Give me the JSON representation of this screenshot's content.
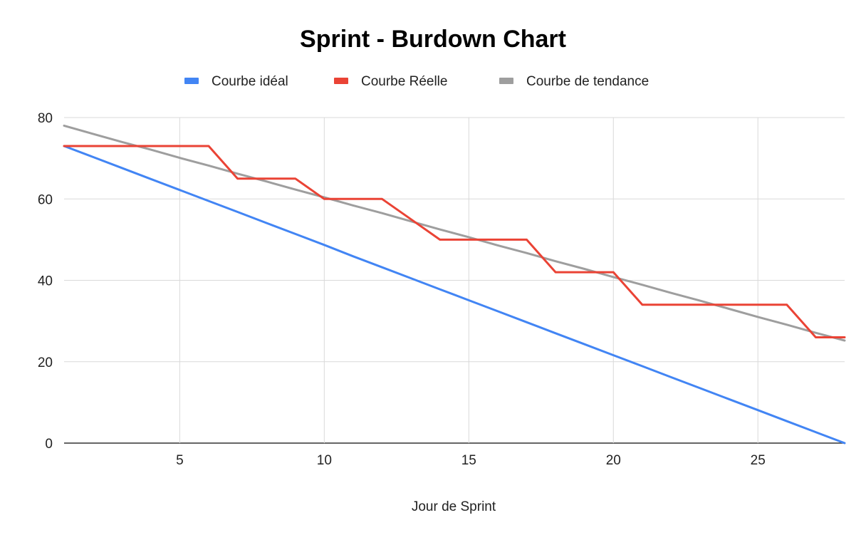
{
  "chart_data": {
    "type": "line",
    "title": "Sprint - Burdown Chart",
    "xlabel": "Jour de Sprint",
    "ylabel": "",
    "xlim": [
      1,
      28
    ],
    "ylim": [
      0,
      80
    ],
    "x_ticks": [
      5,
      10,
      15,
      20,
      25
    ],
    "y_ticks": [
      0,
      20,
      40,
      60,
      80
    ],
    "grid": true,
    "legend_position": "top",
    "x": [
      1,
      2,
      3,
      4,
      5,
      6,
      7,
      8,
      9,
      10,
      11,
      12,
      13,
      14,
      15,
      16,
      17,
      18,
      19,
      20,
      21,
      22,
      23,
      24,
      25,
      26,
      27,
      28
    ],
    "series": [
      {
        "name": "Courbe idéal",
        "color": "#4285f4",
        "values": [
          73,
          70.3,
          67.6,
          64.9,
          62.2,
          59.5,
          56.8,
          54.1,
          51.4,
          48.7,
          45.9,
          43.2,
          40.5,
          37.8,
          35.1,
          32.4,
          29.7,
          27.0,
          24.3,
          21.6,
          18.9,
          16.2,
          13.5,
          10.8,
          8.1,
          5.4,
          2.7,
          0
        ]
      },
      {
        "name": "Courbe Réelle",
        "color": "#ea4335",
        "values": [
          73,
          73,
          73,
          73,
          73,
          73,
          65,
          65,
          65,
          60,
          60,
          60,
          55,
          50,
          50,
          50,
          50,
          42,
          42,
          42,
          34,
          34,
          34,
          34,
          34,
          34,
          26,
          26
        ]
      },
      {
        "name": "Courbe de tendance",
        "color": "#9e9e9e",
        "values": [
          78,
          76,
          74,
          72.1,
          70.1,
          68.2,
          66.2,
          64.3,
          62.3,
          60.4,
          58.4,
          56.5,
          54.5,
          52.5,
          50.6,
          48.6,
          46.7,
          44.7,
          42.8,
          40.8,
          38.9,
          36.9,
          35.0,
          33.0,
          31.0,
          29.1,
          27.1,
          25.2
        ]
      }
    ]
  }
}
